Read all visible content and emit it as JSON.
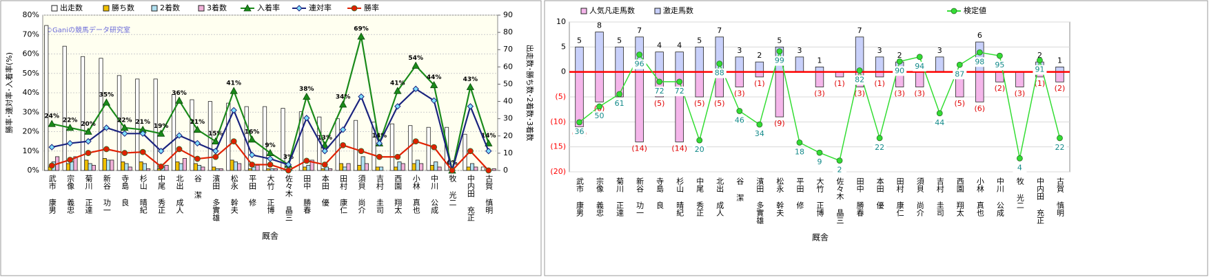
{
  "chart_data": [
    {
      "type": "combo",
      "watermark": "©Ganiの競馬データ研究室",
      "x_label": "厩舎",
      "y_label": "勝率･連対率･入着率(%)",
      "y2_label": "出走数･勝ち数･2着数･3着数",
      "categories": [
        "武市 康男",
        "宗像 義忠",
        "菊川 正達",
        "新谷 功一",
        "寺島 良",
        "杉山 晴紀",
        "中尾 秀正",
        "北出 成人",
        "谷 潔",
        "濱田 多實雄",
        "松永 幹夫",
        "平田 修",
        "大竹 正博",
        "佐々木 晶三",
        "田中 勝春",
        "本田 優",
        "田村 康仁",
        "須貝 尚介",
        "吉村 圭司",
        "西園 翔太",
        "小林 真也",
        "中川 公成",
        "牧 光二",
        "中内田 充正",
        "古賀 慎明"
      ],
      "ylim": [
        0,
        80
      ],
      "yticks": [
        {
          "value": 0,
          "label": "0%"
        },
        {
          "value": 10,
          "label": "10%"
        },
        {
          "value": 20,
          "label": "20%"
        },
        {
          "value": 30,
          "label": "30%"
        },
        {
          "value": 40,
          "label": "40%"
        },
        {
          "value": 50,
          "label": "50%"
        },
        {
          "value": 60,
          "label": "60%"
        },
        {
          "value": 70,
          "label": "70%"
        },
        {
          "value": 80,
          "label": "80%"
        }
      ],
      "y2lim": [
        0,
        90
      ],
      "y2ticks": [
        0,
        10,
        20,
        30,
        40,
        50,
        60,
        70,
        80,
        90
      ],
      "grid": true,
      "series": [
        {
          "name": "出走数",
          "type": "bar",
          "axis": "y2",
          "color": "#ffffff",
          "values": [
            84,
            72,
            66,
            65,
            55,
            53,
            53,
            44,
            41,
            40,
            39,
            37,
            37,
            36,
            34,
            31,
            30,
            29,
            28,
            27,
            26,
            25,
            25,
            21,
            2
          ]
        },
        {
          "name": "勝ち数",
          "type": "bar",
          "axis": "y2",
          "color": "#f0c000",
          "values": [
            2,
            4,
            6,
            7,
            5,
            5,
            1,
            5,
            4,
            2,
            6,
            1,
            1,
            0,
            2,
            1,
            4,
            3,
            2,
            2,
            4,
            3,
            0,
            2,
            0
          ]
        },
        {
          "name": "2着数",
          "type": "bar",
          "axis": "y2",
          "color": "#b0e0f0",
          "values": [
            5,
            5,
            4,
            6,
            4,
            4,
            2,
            4,
            3,
            1,
            5,
            2,
            1,
            1,
            3,
            2,
            2,
            8,
            2,
            5,
            6,
            5,
            0,
            4,
            0
          ]
        },
        {
          "name": "3着数",
          "type": "bar",
          "axis": "y2",
          "color": "#f0b0d8",
          "values": [
            8,
            8,
            3,
            6,
            2,
            1,
            3,
            7,
            2,
            1,
            4,
            3,
            1,
            0,
            6,
            1,
            4,
            4,
            0,
            4,
            4,
            2,
            0,
            2,
            1
          ]
        },
        {
          "name": "入着率",
          "type": "line",
          "marker": "triangle",
          "color": "#1a8a1a",
          "values": [
            24,
            22,
            20,
            35,
            22,
            21,
            19,
            36,
            21,
            15,
            41,
            16,
            9,
            3,
            38,
            13,
            34,
            69,
            14,
            41,
            54,
            44,
            0,
            43,
            14
          ],
          "value_labels": [
            "24%",
            "22%",
            "20%",
            "35%",
            "22%",
            "21%",
            "19%",
            "36%",
            "21%",
            "15%",
            "41%",
            "16%",
            "9%",
            "3%",
            "38%",
            "13%",
            "34%",
            "69%",
            "14%",
            "41%",
            "54%",
            "44%",
            "0%",
            "43%",
            "14%"
          ]
        },
        {
          "name": "連対率",
          "type": "line",
          "marker": "diamond",
          "color": "#1a237e",
          "values": [
            12,
            14,
            15,
            22,
            19,
            19,
            10,
            18,
            14,
            10,
            31,
            8,
            6,
            3,
            27,
            10,
            21,
            38,
            14,
            33,
            42,
            36,
            0,
            33,
            10
          ]
        },
        {
          "name": "勝率",
          "type": "line",
          "marker": "circle",
          "color": "#e02000",
          "values": [
            2.5,
            5.5,
            9,
            11,
            9,
            9.5,
            2,
            11,
            6,
            7,
            15,
            3,
            3,
            0,
            5,
            3,
            13,
            10,
            7,
            7,
            15,
            12,
            0,
            10,
            0
          ]
        }
      ]
    },
    {
      "type": "combo",
      "x_label": "厩舎",
      "categories": [
        "武市 康男",
        "宗像 義忠",
        "菊川 正達",
        "新谷 功一",
        "寺島 良",
        "杉山 晴紀",
        "中尾 秀正",
        "北出 成人",
        "谷 潔",
        "濱田 多實雄",
        "松永 幹夫",
        "平田 修",
        "大竹 正博",
        "佐々木 晶三",
        "田中 勝春",
        "本田 優",
        "田村 康仁",
        "須貝 尚介",
        "吉村 圭司",
        "西園 翔太",
        "小林 真也",
        "中川 公成",
        "牧 光二",
        "中内田 充正",
        "古賀 慎明"
      ],
      "ylim": [
        -20,
        10
      ],
      "yticks": [
        10,
        5,
        0,
        {
          "value": -5,
          "label": "(5)"
        },
        {
          "value": -10,
          "label": "(10)"
        },
        {
          "value": -15,
          "label": "(15)"
        },
        {
          "value": -20,
          "label": "(20)"
        }
      ],
      "y2lim": [
        -8,
        125
      ],
      "grid": true,
      "zero_line_color": "#ff0000",
      "negative_tick_color": "#ff0000",
      "series": [
        {
          "name": "人気凡走馬数",
          "type": "bar",
          "color": "#f4b6ea",
          "values": [
            -11,
            -6,
            -5,
            -14,
            -5,
            -14,
            -5,
            -5,
            -3,
            -1,
            -9,
            0,
            -3,
            -1,
            -3,
            -1,
            -3,
            -3,
            0,
            -5,
            -6,
            -2,
            -3,
            -1,
            -2
          ],
          "value_labels": [
            "(11)",
            "(6)",
            "(5)",
            "(14)",
            "(5)",
            "(14)",
            "(5)",
            "(5)",
            "(3)",
            "(1)",
            "(9)",
            null,
            "(3)",
            "(1)",
            "(3)",
            "(1)",
            "(3)",
            "(3)",
            null,
            "(5)",
            "(6)",
            "(2)",
            "(3)",
            "(1)",
            "(2)"
          ]
        },
        {
          "name": "激走馬数",
          "type": "bar",
          "color": "#c8d0fa",
          "values": [
            5,
            8,
            5,
            7,
            4,
            4,
            5,
            7,
            3,
            2,
            5,
            3,
            1,
            0,
            7,
            3,
            2,
            0,
            3,
            0,
            6,
            0,
            0,
            2,
            1
          ]
        },
        {
          "name": "検定値",
          "type": "line",
          "axis": "y2",
          "marker": "circle",
          "color": "#33dd33",
          "values": [
            36,
            50,
            61,
            96,
            72,
            72,
            20,
            88,
            46,
            34,
            99,
            18,
            9,
            2,
            82,
            22,
            90,
            94,
            44,
            87,
            98,
            95,
            4,
            91,
            22
          ]
        }
      ]
    }
  ]
}
